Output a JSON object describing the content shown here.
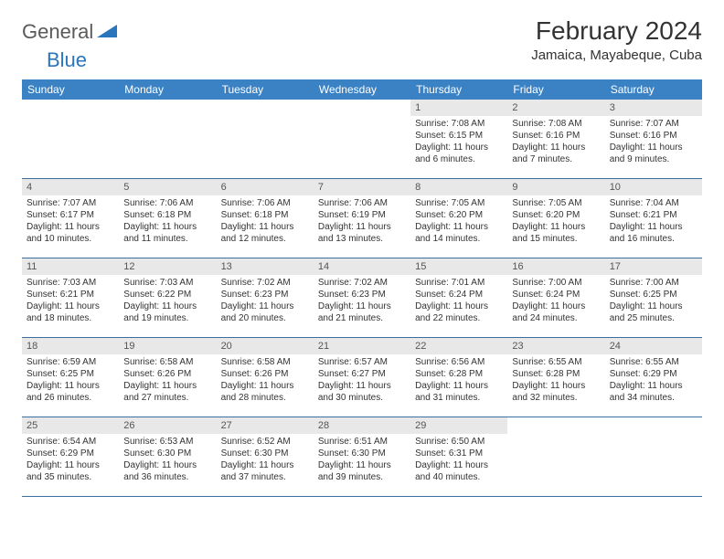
{
  "logo": {
    "part1": "General",
    "part2": "Blue",
    "accent_color": "#2a75bb",
    "text_color": "#5a5a5a"
  },
  "title": "February 2024",
  "location": "Jamaica, Mayabeque, Cuba",
  "colors": {
    "header_bg": "#3b82c4",
    "header_fg": "#ffffff",
    "daynum_bg": "#e8e8e8",
    "row_border": "#3b6fa0",
    "text": "#333333"
  },
  "day_names": [
    "Sunday",
    "Monday",
    "Tuesday",
    "Wednesday",
    "Thursday",
    "Friday",
    "Saturday"
  ],
  "weeks": [
    [
      {
        "n": "",
        "sr": "",
        "ss": "",
        "dl": ""
      },
      {
        "n": "",
        "sr": "",
        "ss": "",
        "dl": ""
      },
      {
        "n": "",
        "sr": "",
        "ss": "",
        "dl": ""
      },
      {
        "n": "",
        "sr": "",
        "ss": "",
        "dl": ""
      },
      {
        "n": "1",
        "sr": "Sunrise: 7:08 AM",
        "ss": "Sunset: 6:15 PM",
        "dl": "Daylight: 11 hours and 6 minutes."
      },
      {
        "n": "2",
        "sr": "Sunrise: 7:08 AM",
        "ss": "Sunset: 6:16 PM",
        "dl": "Daylight: 11 hours and 7 minutes."
      },
      {
        "n": "3",
        "sr": "Sunrise: 7:07 AM",
        "ss": "Sunset: 6:16 PM",
        "dl": "Daylight: 11 hours and 9 minutes."
      }
    ],
    [
      {
        "n": "4",
        "sr": "Sunrise: 7:07 AM",
        "ss": "Sunset: 6:17 PM",
        "dl": "Daylight: 11 hours and 10 minutes."
      },
      {
        "n": "5",
        "sr": "Sunrise: 7:06 AM",
        "ss": "Sunset: 6:18 PM",
        "dl": "Daylight: 11 hours and 11 minutes."
      },
      {
        "n": "6",
        "sr": "Sunrise: 7:06 AM",
        "ss": "Sunset: 6:18 PM",
        "dl": "Daylight: 11 hours and 12 minutes."
      },
      {
        "n": "7",
        "sr": "Sunrise: 7:06 AM",
        "ss": "Sunset: 6:19 PM",
        "dl": "Daylight: 11 hours and 13 minutes."
      },
      {
        "n": "8",
        "sr": "Sunrise: 7:05 AM",
        "ss": "Sunset: 6:20 PM",
        "dl": "Daylight: 11 hours and 14 minutes."
      },
      {
        "n": "9",
        "sr": "Sunrise: 7:05 AM",
        "ss": "Sunset: 6:20 PM",
        "dl": "Daylight: 11 hours and 15 minutes."
      },
      {
        "n": "10",
        "sr": "Sunrise: 7:04 AM",
        "ss": "Sunset: 6:21 PM",
        "dl": "Daylight: 11 hours and 16 minutes."
      }
    ],
    [
      {
        "n": "11",
        "sr": "Sunrise: 7:03 AM",
        "ss": "Sunset: 6:21 PM",
        "dl": "Daylight: 11 hours and 18 minutes."
      },
      {
        "n": "12",
        "sr": "Sunrise: 7:03 AM",
        "ss": "Sunset: 6:22 PM",
        "dl": "Daylight: 11 hours and 19 minutes."
      },
      {
        "n": "13",
        "sr": "Sunrise: 7:02 AM",
        "ss": "Sunset: 6:23 PM",
        "dl": "Daylight: 11 hours and 20 minutes."
      },
      {
        "n": "14",
        "sr": "Sunrise: 7:02 AM",
        "ss": "Sunset: 6:23 PM",
        "dl": "Daylight: 11 hours and 21 minutes."
      },
      {
        "n": "15",
        "sr": "Sunrise: 7:01 AM",
        "ss": "Sunset: 6:24 PM",
        "dl": "Daylight: 11 hours and 22 minutes."
      },
      {
        "n": "16",
        "sr": "Sunrise: 7:00 AM",
        "ss": "Sunset: 6:24 PM",
        "dl": "Daylight: 11 hours and 24 minutes."
      },
      {
        "n": "17",
        "sr": "Sunrise: 7:00 AM",
        "ss": "Sunset: 6:25 PM",
        "dl": "Daylight: 11 hours and 25 minutes."
      }
    ],
    [
      {
        "n": "18",
        "sr": "Sunrise: 6:59 AM",
        "ss": "Sunset: 6:25 PM",
        "dl": "Daylight: 11 hours and 26 minutes."
      },
      {
        "n": "19",
        "sr": "Sunrise: 6:58 AM",
        "ss": "Sunset: 6:26 PM",
        "dl": "Daylight: 11 hours and 27 minutes."
      },
      {
        "n": "20",
        "sr": "Sunrise: 6:58 AM",
        "ss": "Sunset: 6:26 PM",
        "dl": "Daylight: 11 hours and 28 minutes."
      },
      {
        "n": "21",
        "sr": "Sunrise: 6:57 AM",
        "ss": "Sunset: 6:27 PM",
        "dl": "Daylight: 11 hours and 30 minutes."
      },
      {
        "n": "22",
        "sr": "Sunrise: 6:56 AM",
        "ss": "Sunset: 6:28 PM",
        "dl": "Daylight: 11 hours and 31 minutes."
      },
      {
        "n": "23",
        "sr": "Sunrise: 6:55 AM",
        "ss": "Sunset: 6:28 PM",
        "dl": "Daylight: 11 hours and 32 minutes."
      },
      {
        "n": "24",
        "sr": "Sunrise: 6:55 AM",
        "ss": "Sunset: 6:29 PM",
        "dl": "Daylight: 11 hours and 34 minutes."
      }
    ],
    [
      {
        "n": "25",
        "sr": "Sunrise: 6:54 AM",
        "ss": "Sunset: 6:29 PM",
        "dl": "Daylight: 11 hours and 35 minutes."
      },
      {
        "n": "26",
        "sr": "Sunrise: 6:53 AM",
        "ss": "Sunset: 6:30 PM",
        "dl": "Daylight: 11 hours and 36 minutes."
      },
      {
        "n": "27",
        "sr": "Sunrise: 6:52 AM",
        "ss": "Sunset: 6:30 PM",
        "dl": "Daylight: 11 hours and 37 minutes."
      },
      {
        "n": "28",
        "sr": "Sunrise: 6:51 AM",
        "ss": "Sunset: 6:30 PM",
        "dl": "Daylight: 11 hours and 39 minutes."
      },
      {
        "n": "29",
        "sr": "Sunrise: 6:50 AM",
        "ss": "Sunset: 6:31 PM",
        "dl": "Daylight: 11 hours and 40 minutes."
      },
      {
        "n": "",
        "sr": "",
        "ss": "",
        "dl": ""
      },
      {
        "n": "",
        "sr": "",
        "ss": "",
        "dl": ""
      }
    ]
  ]
}
